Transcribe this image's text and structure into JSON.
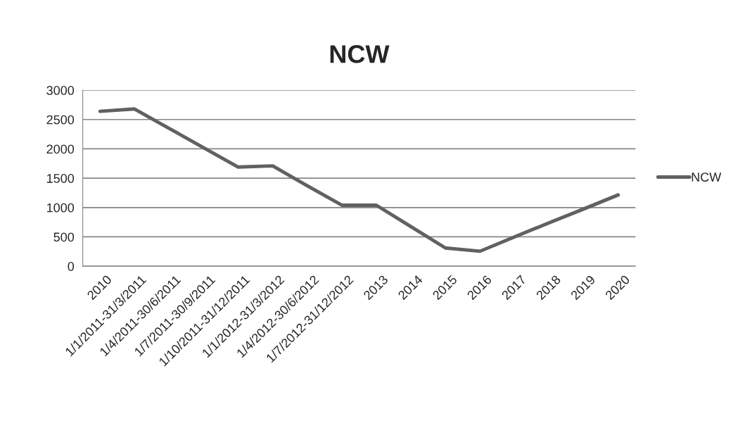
{
  "chart_data": {
    "type": "line",
    "title": "NCW",
    "categories": [
      "2010",
      "1/1/2011-31/3/2011",
      "1/4/2011-30/6/2011",
      "1/7/2011-30/9/2011",
      "1/10/2011-31/12/2011",
      "1/1/2012-31/3/2012",
      "1/4/2012-30/6/2012",
      "1/7/2012-31/12/2012",
      "2013",
      "2014",
      "2015",
      "2016",
      "2017",
      "2018",
      "2019",
      "2020"
    ],
    "series": [
      {
        "name": "NCW",
        "color": "#616161",
        "values": [
          2640,
          2680,
          2350,
          2020,
          1690,
          1710,
          1370,
          1040,
          1040,
          675,
          310,
          255,
          500,
          740,
          975,
          1215
        ]
      }
    ],
    "ylim": [
      0,
      3000
    ],
    "yticks": [
      0,
      500,
      1000,
      1500,
      2000,
      2500,
      3000
    ],
    "grid": "y",
    "legend": "right",
    "marker": "none",
    "line_style": "solid"
  }
}
